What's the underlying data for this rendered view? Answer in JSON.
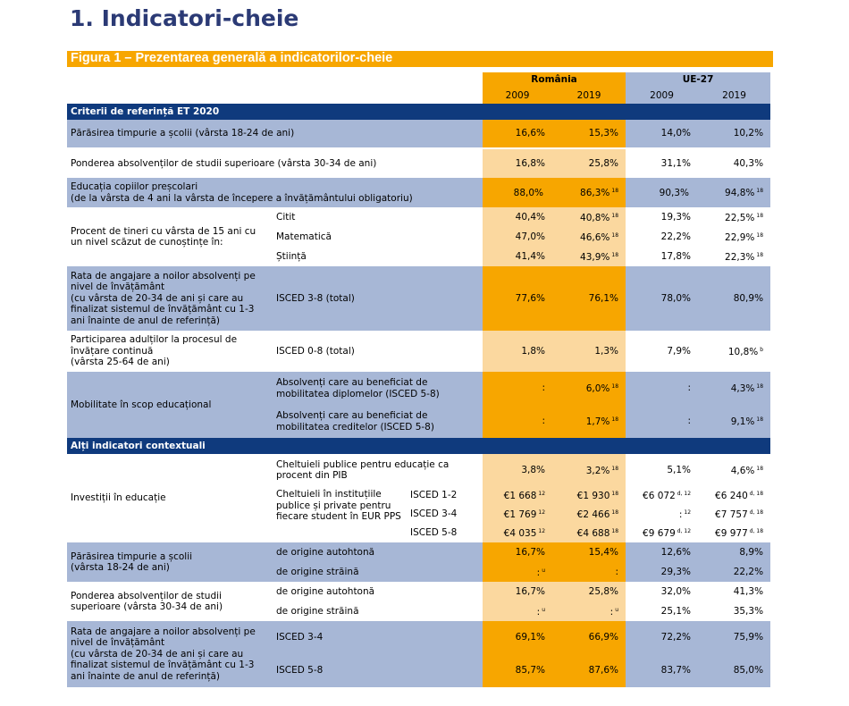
{
  "heading": "1. Indicatori-cheie",
  "figure_title": "Figura 1 – Prezentarea generală a indicatorilor-cheie",
  "columns": {
    "romania": "România",
    "eu": "UE-27",
    "years": [
      "2009",
      "2019",
      "2009",
      "2019"
    ]
  },
  "sections": {
    "et2020": "Criterii de referință ET 2020",
    "context": "Alți indicatori contextuali"
  },
  "rows": {
    "r1": {
      "label": "Părăsirea timpurie a școlii (vârsta 18-24 de ani)",
      "v": [
        "16,6%",
        "15,3%",
        "14,0%",
        "10,2%"
      ]
    },
    "r2": {
      "label": "Ponderea absolvenților de studii superioare (vârsta 30-34 de ani)",
      "v": [
        "16,8%",
        "25,8%",
        "31,1%",
        "40,3%"
      ]
    },
    "r3": {
      "label": "Educația copiilor preșcolari\n(de la vârsta de 4 ani la vârsta de începere a învățământului obligatoriu)",
      "v": [
        "88,0%",
        "86,3%",
        "90,3%",
        "94,8%"
      ],
      "s": [
        "",
        "18",
        "",
        "18"
      ]
    },
    "r4": {
      "label": "Procent de tineri cu vârsta de 15 ani cu un nivel scăzut de cunoștințe în:",
      "subs": [
        {
          "label": "Citit",
          "v": [
            "40,4%",
            "40,8%",
            "19,3%",
            "22,5%"
          ],
          "s": [
            "",
            "18",
            "",
            "18"
          ]
        },
        {
          "label": "Matematică",
          "v": [
            "47,0%",
            "46,6%",
            "22,2%",
            "22,9%"
          ],
          "s": [
            "",
            "18",
            "",
            "18"
          ]
        },
        {
          "label": "Știință",
          "v": [
            "41,4%",
            "43,9%",
            "17,8%",
            "22,3%"
          ],
          "s": [
            "",
            "18",
            "",
            "18"
          ]
        }
      ]
    },
    "r5": {
      "label": "Rata de angajare a noilor absolvenți pe nivel de învățământ\n(cu vârsta de 20-34 de ani și care au finalizat sistemul de învățământ cu 1-3 ani înainte de anul de referință)",
      "sub": "ISCED 3-8 (total)",
      "v": [
        "77,6%",
        "76,1%",
        "78,0%",
        "80,9%"
      ]
    },
    "r6": {
      "label": "Participarea adulților la procesul de învățare continuă\n(vârsta 25-64 de ani)",
      "sub": "ISCED 0-8 (total)",
      "v": [
        "1,8%",
        "1,3%",
        "7,9%",
        "10,8%"
      ],
      "s": [
        "",
        "",
        "",
        "b"
      ]
    },
    "r7": {
      "label": "Mobilitate în scop educațional",
      "subs": [
        {
          "label": "Absolvenți care au beneficiat de mobilitatea diplomelor (ISCED 5-8)",
          "v": [
            ":",
            "6,0%",
            ":",
            "4,3%"
          ],
          "s": [
            "",
            "18",
            "",
            "18"
          ]
        },
        {
          "label": "Absolvenți care au beneficiat de mobilitatea creditelor (ISCED 5-8)",
          "v": [
            ":",
            "1,7%",
            ":",
            "9,1%"
          ],
          "s": [
            "",
            "18",
            "",
            "18"
          ]
        }
      ]
    },
    "r8": {
      "label": "Investiții în educație",
      "pib": {
        "label": "Cheltuieli publice pentru educație ca procent din PIB",
        "v": [
          "3,8%",
          "3,2%",
          "5,1%",
          "4,6%"
        ],
        "s": [
          "",
          "18",
          "",
          "18"
        ]
      },
      "inst_label": "Cheltuieli în instituțiile publice și private pentru fiecare student în EUR PPS",
      "levels": [
        {
          "label": "ISCED 1-2",
          "v": [
            "€1 668",
            "€1 930",
            "€6 072",
            "€6 240"
          ],
          "s": [
            "12",
            "18",
            "d, 12",
            "d, 18"
          ]
        },
        {
          "label": "ISCED 3-4",
          "v": [
            "€1 769",
            "€2 466",
            ":",
            "€7 757"
          ],
          "s": [
            "12",
            "18",
            "12",
            "d, 18"
          ]
        },
        {
          "label": "ISCED 5-8",
          "v": [
            "€4 035",
            "€4 688",
            "€9 679",
            "€9 977"
          ],
          "s": [
            "12",
            "18",
            "d, 12",
            "d, 18"
          ]
        }
      ]
    },
    "r9": {
      "label": "Părăsirea timpurie a școlii\n(vârsta 18-24 de ani)",
      "subs": [
        {
          "label": "de origine autohtonă",
          "v": [
            "16,7%",
            "15,4%",
            "12,6%",
            "8,9%"
          ],
          "s": [
            "",
            "",
            "",
            ""
          ]
        },
        {
          "label": "de origine străină",
          "v": [
            ":",
            ":",
            "29,3%",
            "22,2%"
          ],
          "s": [
            "u",
            "",
            "",
            ""
          ]
        }
      ]
    },
    "r10": {
      "label": "Ponderea absolvenților de studii superioare (vârsta 30-34 de ani)",
      "subs": [
        {
          "label": "de origine autohtonă",
          "v": [
            "16,7%",
            "25,8%",
            "32,0%",
            "41,3%"
          ],
          "s": [
            "",
            "",
            "",
            ""
          ]
        },
        {
          "label": "de origine străină",
          "v": [
            ":",
            ":",
            "25,1%",
            "35,3%"
          ],
          "s": [
            "u",
            "u",
            "",
            ""
          ]
        }
      ]
    },
    "r11": {
      "label": "Rata de angajare a noilor absolvenți pe nivel de învățământ\n(cu vârsta de 20-34 de ani și care au finalizat sistemul de învățământ cu 1-3 ani înainte de anul de referință)",
      "subs": [
        {
          "label": "ISCED 3-4",
          "v": [
            "69,1%",
            "66,9%",
            "72,2%",
            "75,9%"
          ]
        },
        {
          "label": "ISCED 5-8",
          "v": [
            "85,7%",
            "87,6%",
            "83,7%",
            "85,0%"
          ]
        }
      ]
    }
  },
  "colors": {
    "blue": "#a7b7d6",
    "orange": "#f7a600",
    "light_orange": "#fbd89f",
    "navy": "#0f3a7d",
    "title": "#2b3a75"
  }
}
